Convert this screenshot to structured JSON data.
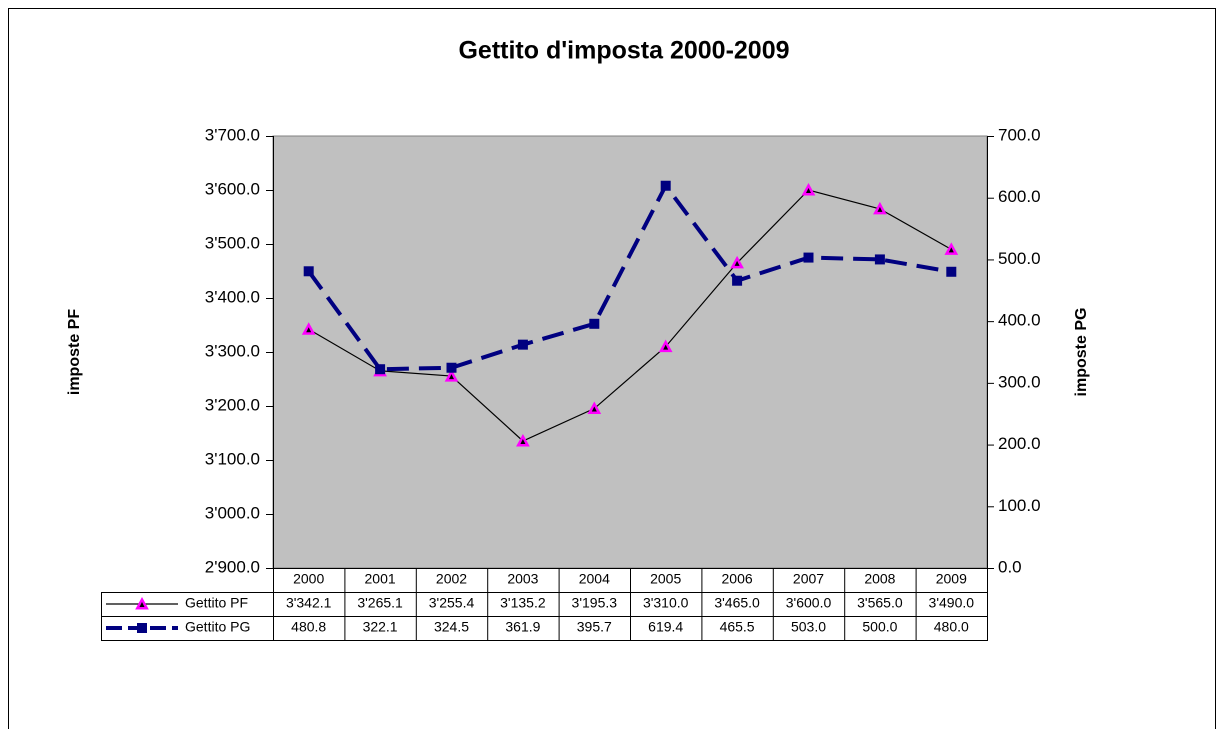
{
  "chart_data": {
    "type": "line",
    "title": "Gettito d'imposta 2000-2009",
    "categories": [
      "2000",
      "2001",
      "2002",
      "2003",
      "2004",
      "2005",
      "2006",
      "2007",
      "2008",
      "2009"
    ],
    "ylabel": "imposte PF",
    "y2label": "imposte PG",
    "ylim": [
      2900,
      3700
    ],
    "yticks": [
      {
        "value": 2900,
        "label": "2'900.0"
      },
      {
        "value": 3000,
        "label": "3'000.0"
      },
      {
        "value": 3100,
        "label": "3'100.0"
      },
      {
        "value": 3200,
        "label": "3'200.0"
      },
      {
        "value": 3300,
        "label": "3'300.0"
      },
      {
        "value": 3400,
        "label": "3'400.0"
      },
      {
        "value": 3500,
        "label": "3'500.0"
      },
      {
        "value": 3600,
        "label": "3'600.0"
      },
      {
        "value": 3700,
        "label": "3'700.0"
      }
    ],
    "y2lim": [
      0,
      700
    ],
    "y2ticks": [
      {
        "value": 0,
        "label": "0.0"
      },
      {
        "value": 100,
        "label": "100.0"
      },
      {
        "value": 200,
        "label": "200.0"
      },
      {
        "value": 300,
        "label": "300.0"
      },
      {
        "value": 400,
        "label": "400.0"
      },
      {
        "value": 500,
        "label": "500.0"
      },
      {
        "value": 600,
        "label": "600.0"
      },
      {
        "value": 700,
        "label": "700.0"
      }
    ],
    "plot_background": "#c0c0c0",
    "series": [
      {
        "name": "Gettito PF",
        "color": "#000000",
        "marker_color": "#ff00ff",
        "marker": "triangle",
        "dashed": false,
        "values": [
          3342.1,
          3265.1,
          3255.4,
          3135.2,
          3195.3,
          3310.0,
          3465.0,
          3600.0,
          3565.0,
          3490.0
        ],
        "value_labels": [
          "3'342.1",
          "3'265.1",
          "3'255.4",
          "3'135.2",
          "3'195.3",
          "3'310.0",
          "3'465.0",
          "3'600.0",
          "3'565.0",
          "3'490.0"
        ]
      },
      {
        "name": "Gettito PG",
        "color": "#000080",
        "marker_color": "#000080",
        "marker": "square",
        "dashed": true,
        "axis": "y2",
        "values": [
          480.8,
          322.1,
          324.5,
          361.9,
          395.7,
          619.4,
          465.5,
          503.0,
          500.0,
          480.0
        ],
        "value_labels": [
          "480.8",
          "322.1",
          "324.5",
          "361.9",
          "395.7",
          "619.4",
          "465.5",
          "503.0",
          "500.0",
          "480.0"
        ]
      }
    ]
  }
}
